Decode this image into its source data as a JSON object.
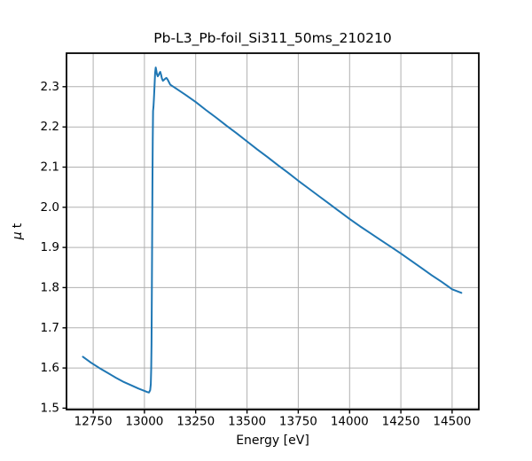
{
  "chart_data": {
    "type": "line",
    "title": "Pb-L3_Pb-foil_Si311_50ms_210210",
    "xlabel": "Energy [eV]",
    "ylabel": "μ t",
    "xlim": [
      12620,
      14630
    ],
    "ylim": [
      1.4965,
      2.3835
    ],
    "x_ticks": [
      12750,
      13000,
      13250,
      13500,
      13750,
      14000,
      14250,
      14500
    ],
    "y_ticks": [
      1.5,
      1.6,
      1.7,
      1.8,
      1.9,
      2.0,
      2.1,
      2.2,
      2.3
    ],
    "grid": true,
    "legend": "none",
    "grid_color": "#b0b0b0",
    "line_color": "#1f77b4",
    "spine_color": "#000000",
    "series": [
      {
        "name": "mu_t",
        "x": [
          12700,
          12740,
          12780,
          12820,
          12860,
          12900,
          12940,
          12970,
          13000,
          13015,
          13022,
          13028,
          13031,
          13033,
          13034.5,
          13036,
          13037.5,
          13039,
          13040.5,
          13042,
          13044,
          13046,
          13049,
          13052,
          13055,
          13058,
          13061,
          13065,
          13069,
          13073,
          13077,
          13081,
          13085,
          13090,
          13095,
          13101,
          13107,
          13113,
          13120,
          13126,
          13150,
          13200,
          13250,
          13300,
          13350,
          13400,
          13450,
          13500,
          13550,
          13600,
          13650,
          13700,
          13750,
          13800,
          13850,
          13900,
          13950,
          14000,
          14050,
          14100,
          14150,
          14200,
          14250,
          14300,
          14350,
          14400,
          14450,
          14500,
          14545
        ],
        "y": [
          1.628,
          1.613,
          1.6,
          1.588,
          1.576,
          1.565,
          1.556,
          1.549,
          1.543,
          1.54,
          1.539,
          1.545,
          1.56,
          1.6,
          1.66,
          1.78,
          1.92,
          2.06,
          2.17,
          2.24,
          2.25,
          2.268,
          2.3,
          2.335,
          2.348,
          2.34,
          2.331,
          2.326,
          2.329,
          2.334,
          2.337,
          2.33,
          2.321,
          2.315,
          2.317,
          2.32,
          2.322,
          2.318,
          2.311,
          2.305,
          2.297,
          2.28,
          2.262,
          2.242,
          2.223,
          2.203,
          2.184,
          2.164,
          2.144,
          2.125,
          2.105,
          2.086,
          2.066,
          2.047,
          2.028,
          2.009,
          1.99,
          1.971,
          1.953,
          1.936,
          1.919,
          1.902,
          1.885,
          1.867,
          1.849,
          1.831,
          1.814,
          1.796,
          1.787
        ]
      }
    ]
  },
  "labels": {
    "ylabel_mu": "μ",
    "ylabel_rest": "t"
  }
}
